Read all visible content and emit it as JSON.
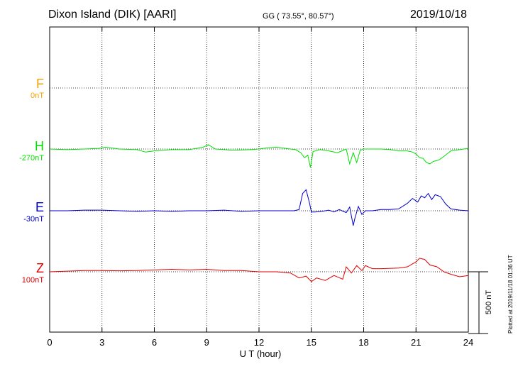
{
  "header": {
    "title": "Dixon Island (DIK)  [AARI]",
    "coords": "GG ( 73.55°,  80.57°)",
    "date": "2019/10/18",
    "plotted": "Plotted at 2019/11/18 01:36 UT"
  },
  "colors": {
    "F": "#f5a000",
    "H": "#00e000",
    "E": "#0000cc",
    "Z": "#e00000"
  },
  "chart_data": {
    "type": "line",
    "xlabel": "U T (hour)",
    "xlim": [
      0,
      24
    ],
    "xticks": [
      0,
      3,
      6,
      9,
      12,
      15,
      18,
      21,
      24
    ],
    "scale_label": "500 nT",
    "scale_nT": 500,
    "components": [
      {
        "name": "F",
        "baseline_label": "0nT",
        "color": "#f5a000",
        "x": [],
        "y": []
      },
      {
        "name": "H",
        "baseline_label": "-270nT",
        "color": "#00e000",
        "x": [
          0,
          1,
          2,
          2.8,
          3.2,
          4,
          5,
          5.5,
          6,
          7,
          8,
          8.8,
          9.1,
          9.5,
          10.5,
          11.5,
          12,
          12.5,
          13,
          13.8,
          14.1,
          14.4,
          14.6,
          14.8,
          14.95,
          15.1,
          15.5,
          16,
          16.5,
          17,
          17.2,
          17.4,
          17.6,
          17.8,
          18,
          19,
          19.5,
          20,
          20.5,
          20.8,
          21,
          21.2,
          21.4,
          21.6,
          21.8,
          22,
          22.3,
          22.6,
          23,
          24
        ],
        "y": [
          -270,
          -275,
          -270,
          -265,
          -255,
          -270,
          -275,
          -295,
          -285,
          -275,
          -275,
          -255,
          -235,
          -270,
          -280,
          -275,
          -270,
          -260,
          -255,
          -270,
          -275,
          -300,
          -340,
          -320,
          -420,
          -290,
          -275,
          -285,
          -300,
          -270,
          -390,
          -300,
          -380,
          -280,
          -270,
          -270,
          -275,
          -285,
          -285,
          -295,
          -310,
          -340,
          -345,
          -380,
          -390,
          -370,
          -360,
          -330,
          -285,
          -265
        ]
      },
      {
        "name": "E",
        "baseline_label": "-30nT",
        "color": "#0000cc",
        "x": [
          0,
          1,
          2,
          3,
          4,
          5,
          6,
          7,
          8,
          9,
          10,
          11,
          12,
          13,
          14,
          14.3,
          14.5,
          14.7,
          14.9,
          15.0,
          15.2,
          15.6,
          16,
          16.3,
          16.6,
          17,
          17.2,
          17.4,
          17.5,
          17.7,
          17.9,
          18.1,
          18.5,
          19,
          19.5,
          20,
          20.5,
          20.8,
          21.1,
          21.3,
          21.5,
          21.7,
          21.9,
          22.1,
          22.4,
          22.7,
          23,
          23.5,
          24
        ],
        "y": [
          -30,
          -30,
          -25,
          -25,
          -30,
          -35,
          -30,
          -35,
          -30,
          -30,
          -25,
          -35,
          -30,
          -30,
          -30,
          -20,
          110,
          140,
          30,
          -40,
          -40,
          -35,
          -25,
          -40,
          -20,
          -45,
          0,
          -150,
          -90,
          5,
          -60,
          -30,
          -30,
          -20,
          -20,
          -15,
          30,
          70,
          40,
          90,
          75,
          110,
          60,
          100,
          85,
          25,
          -15,
          -25,
          -30
        ]
      },
      {
        "name": "Z",
        "baseline_label": "100nT",
        "color": "#e00000",
        "x": [
          0,
          1,
          2,
          3,
          4,
          5,
          6,
          7,
          8,
          9,
          10,
          11,
          12,
          13,
          13.8,
          14.3,
          14.7,
          15.0,
          15.3,
          15.8,
          16.3,
          16.8,
          17.0,
          17.3,
          17.6,
          17.9,
          18.1,
          18.5,
          19,
          20,
          20.5,
          21,
          21.2,
          21.5,
          21.8,
          22.2,
          22.6,
          23,
          23.5,
          24
        ],
        "y": [
          100,
          105,
          110,
          110,
          108,
          110,
          115,
          120,
          115,
          120,
          110,
          110,
          100,
          100,
          90,
          50,
          65,
          20,
          50,
          30,
          70,
          40,
          140,
          90,
          150,
          110,
          150,
          125,
          125,
          130,
          140,
          180,
          210,
          200,
          155,
          140,
          100,
          80,
          60,
          70
        ]
      }
    ]
  }
}
